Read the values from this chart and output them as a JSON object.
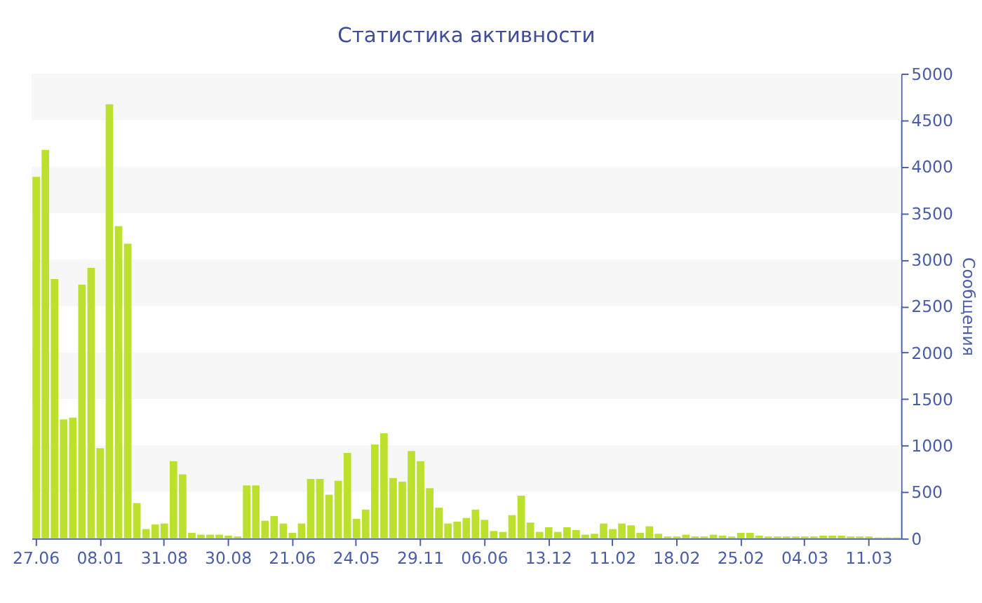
{
  "chart_data": {
    "type": "bar",
    "title": "Статистика активности",
    "y2label": "Сообщения",
    "categories": [
      "27.06",
      null,
      null,
      null,
      null,
      null,
      null,
      "08.01",
      null,
      null,
      null,
      null,
      null,
      null,
      "31.08",
      null,
      null,
      null,
      null,
      null,
      null,
      "30.08",
      null,
      null,
      null,
      null,
      null,
      null,
      "21.06",
      null,
      null,
      null,
      null,
      null,
      null,
      "24.05",
      null,
      null,
      null,
      null,
      null,
      null,
      "29.11",
      null,
      null,
      null,
      null,
      null,
      null,
      "06.06",
      null,
      null,
      null,
      null,
      null,
      null,
      "13.12",
      null,
      null,
      null,
      null,
      null,
      null,
      "11.02",
      null,
      null,
      null,
      null,
      null,
      null,
      "18.02",
      null,
      null,
      null,
      null,
      null,
      null,
      "25.02",
      null,
      null,
      null,
      null,
      null,
      null,
      "04.03",
      null,
      null,
      null,
      null,
      null,
      null,
      "11.03",
      null,
      null,
      null
    ],
    "series": [
      {
        "color": "#bbe02e",
        "axis": "y2",
        "values": [
          3890,
          4180,
          2790,
          1280,
          1300,
          2730,
          2910,
          970,
          4670,
          3360,
          3170,
          380,
          100,
          150,
          160,
          830,
          690,
          60,
          40,
          40,
          40,
          30,
          20,
          570,
          570,
          190,
          240,
          160,
          60,
          160,
          640,
          640,
          470,
          620,
          920,
          210,
          310,
          1010,
          1130,
          650,
          610,
          940,
          830,
          540,
          330,
          160,
          180,
          220,
          310,
          200,
          80,
          70,
          250,
          460,
          170,
          70,
          120,
          70,
          120,
          90,
          40,
          50,
          160,
          100,
          160,
          140,
          60,
          130,
          50,
          20,
          20,
          40,
          20,
          20,
          40,
          30,
          20,
          60,
          60,
          30,
          20,
          20,
          20,
          20,
          20,
          20,
          30,
          30,
          30,
          20,
          20,
          20,
          10,
          10,
          10
        ]
      }
    ],
    "y2lim": [
      0,
      5000
    ],
    "y2ticks": [
      0,
      500,
      1000,
      1500,
      2000,
      2500,
      3000,
      3500,
      4000,
      4500,
      5000
    ],
    "bands": [
      {
        "axis": "y2",
        "from": 500,
        "to": 1000,
        "color": "#f7f7f7"
      },
      {
        "axis": "y2",
        "from": 1500,
        "to": 2000,
        "color": "#f7f7f7"
      },
      {
        "axis": "y2",
        "from": 2500,
        "to": 3000,
        "color": "#f7f7f7"
      },
      {
        "axis": "y2",
        "from": 3500,
        "to": 4000,
        "color": "#f7f7f7"
      },
      {
        "axis": "y2",
        "from": 4500,
        "to": 5000,
        "color": "#f7f7f7"
      }
    ]
  }
}
